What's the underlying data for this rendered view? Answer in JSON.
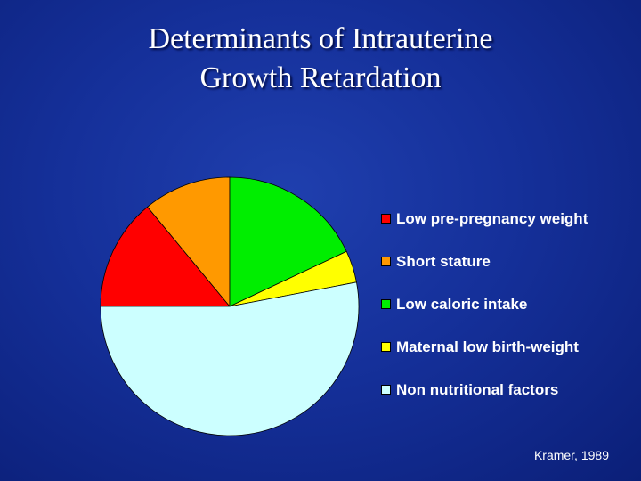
{
  "slide": {
    "title_lines": [
      "Determinants of Intrauterine",
      "Growth Retardation"
    ],
    "source": "Kramer, 1989"
  },
  "chart_data": {
    "type": "pie",
    "title": "Determinants of Intrauterine Growth Retardation",
    "categories": [
      "Low pre-pregnancy weight",
      "Short stature",
      "Low caloric intake",
      "Maternal low birth-weight",
      "Non nutritional factors"
    ],
    "values": [
      14,
      11,
      18,
      4,
      53
    ],
    "unit": "%",
    "colors": [
      "#ff0000",
      "#ff9900",
      "#00ee00",
      "#ffff00",
      "#ccffff"
    ],
    "start_angle_deg": 180,
    "legend": {
      "position": "right"
    }
  }
}
